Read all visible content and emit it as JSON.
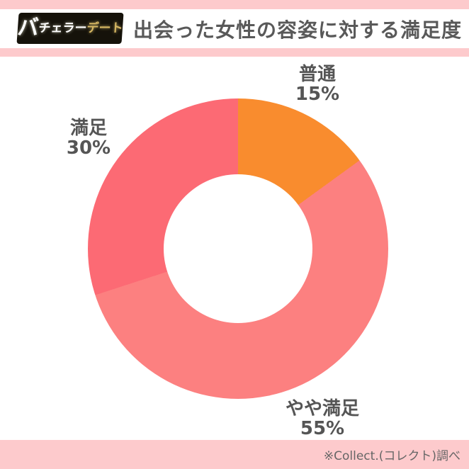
{
  "header": {
    "logo": {
      "text_main": "バ",
      "text_sub": "チェラー",
      "text_accent": "デート",
      "bg_color": "#15120a",
      "accent_color": "#d8b863"
    },
    "title": "出会った女性の容姿に対する満足度"
  },
  "footer": {
    "source": "※Collect.(コレクト)調べ"
  },
  "theme": {
    "accent_bar_color": "#fdcacc",
    "label_text_color": "#555555",
    "background": "#ffffff"
  },
  "chart_data": {
    "type": "pie",
    "donut": true,
    "title": "出会った女性の容姿に対する満足度",
    "start_angle_deg": 0,
    "direction": "clockwise",
    "inner_radius_ratio": 0.5,
    "legend_position": "none",
    "segments": [
      {
        "label": "普通",
        "value": 15,
        "pct_label": "15%",
        "color": "#f98c2e"
      },
      {
        "label": "やや満足",
        "value": 55,
        "pct_label": "55%",
        "color": "#fc8080"
      },
      {
        "label": "満足",
        "value": 30,
        "pct_label": "30%",
        "color": "#fc6a74"
      }
    ]
  }
}
